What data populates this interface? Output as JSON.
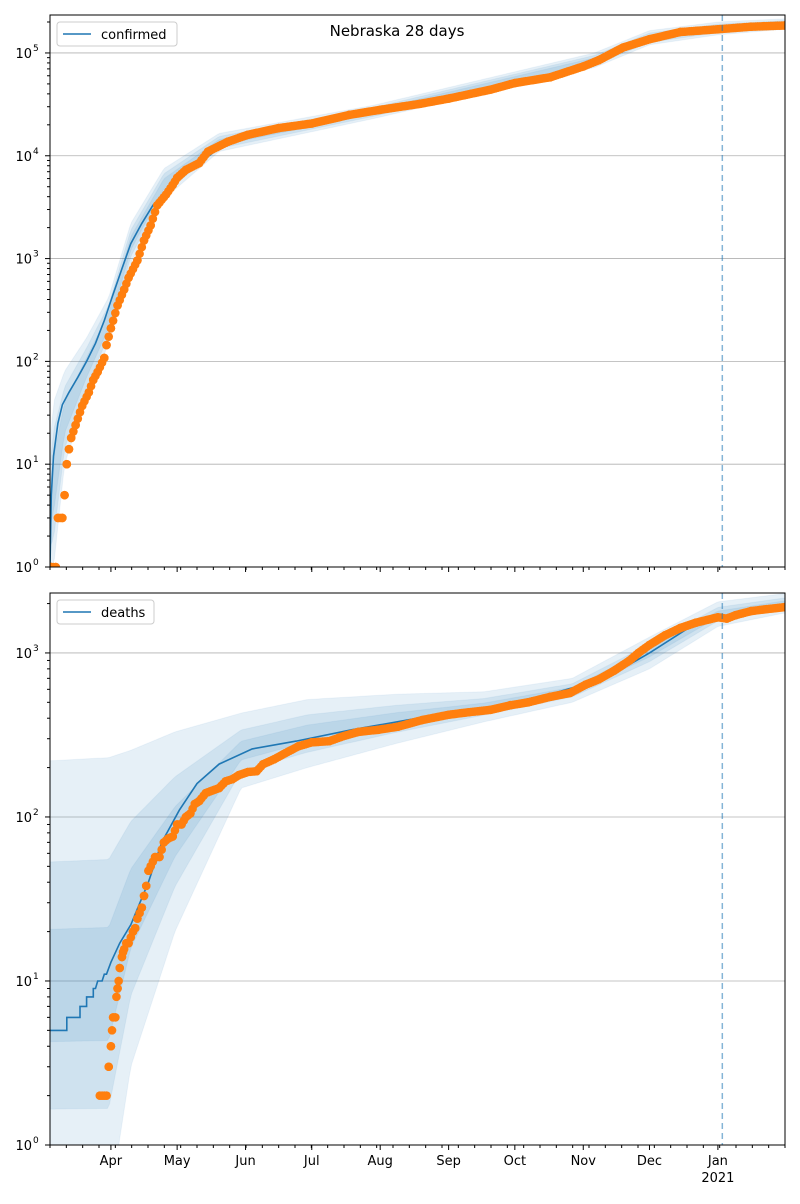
{
  "chart_data": [
    {
      "type": "line",
      "title": "Nebraska 28 days",
      "scale": "log",
      "ylim": [
        1,
        234000
      ],
      "xlim_days_since_2020_03_01": [
        3.4,
        336.4
      ],
      "yticks": [
        {
          "exp": "0",
          "value": 1
        },
        {
          "exp": "1",
          "value": 10
        },
        {
          "exp": "2",
          "value": 100
        },
        {
          "exp": "3",
          "value": 1000
        },
        {
          "exp": "4",
          "value": 10000
        },
        {
          "exp": "5",
          "value": 100000
        }
      ],
      "legend": {
        "label": "confirmed",
        "placement": "top-left"
      },
      "grid": "horizontal",
      "vline_day": 308,
      "model": [
        [
          3.4,
          1
        ],
        [
          4,
          5
        ],
        [
          5,
          12
        ],
        [
          7,
          25
        ],
        [
          9,
          38
        ],
        [
          12,
          50
        ],
        [
          16,
          70
        ],
        [
          20,
          100
        ],
        [
          24,
          150
        ],
        [
          28,
          250
        ],
        [
          32,
          450
        ],
        [
          36,
          800
        ],
        [
          40,
          1400
        ],
        [
          45,
          2200
        ],
        [
          50,
          3300
        ],
        [
          56,
          4600
        ],
        [
          61,
          6100
        ],
        [
          71,
          8500
        ],
        [
          84,
          13700
        ],
        [
          107,
          18600
        ],
        [
          139,
          25000
        ],
        [
          171,
          32000
        ],
        [
          203,
          44000
        ],
        [
          230,
          58000
        ],
        [
          252,
          85000
        ],
        [
          263,
          110000
        ],
        [
          275,
          135000
        ],
        [
          306,
          170000
        ],
        [
          336,
          185000
        ]
      ],
      "observed": [
        [
          4,
          1
        ],
        [
          6,
          1
        ],
        [
          7,
          3
        ],
        [
          9,
          3
        ],
        [
          10,
          5
        ],
        [
          11,
          10
        ],
        [
          12,
          14
        ],
        [
          13,
          18
        ],
        [
          15,
          24
        ],
        [
          18,
          37
        ],
        [
          21,
          50
        ],
        [
          23,
          66
        ],
        [
          25,
          79
        ],
        [
          28,
          108
        ],
        [
          29,
          144
        ],
        [
          31,
          210
        ],
        [
          34,
          350
        ],
        [
          37,
          500
        ],
        [
          39,
          650
        ],
        [
          43,
          960
        ],
        [
          46,
          1500
        ],
        [
          49,
          2100
        ],
        [
          52,
          3300
        ],
        [
          56,
          4200
        ],
        [
          59,
          5200
        ],
        [
          61,
          6100
        ],
        [
          65,
          7300
        ],
        [
          71,
          8500
        ],
        [
          75,
          11000
        ],
        [
          84,
          13700
        ],
        [
          93,
          16000
        ],
        [
          107,
          18600
        ],
        [
          122,
          20600
        ],
        [
          139,
          25000
        ],
        [
          153,
          28000
        ],
        [
          171,
          32000
        ],
        [
          184,
          36000
        ],
        [
          203,
          44000
        ],
        [
          214,
          51000
        ],
        [
          230,
          58000
        ],
        [
          245,
          74000
        ],
        [
          252,
          85000
        ],
        [
          263,
          113000
        ],
        [
          275,
          136000
        ],
        [
          289,
          160000
        ],
        [
          306,
          170000
        ],
        [
          321,
          180000
        ],
        [
          336,
          185000
        ]
      ],
      "band_outer": [
        [
          3.4,
          1,
          15
        ],
        [
          5,
          1,
          40
        ],
        [
          10,
          10,
          80
        ],
        [
          20,
          45,
          170
        ],
        [
          30,
          150,
          420
        ],
        [
          40,
          900,
          2200
        ],
        [
          55,
          3800,
          7500
        ],
        [
          80,
          11000,
          16500
        ],
        [
          150,
          23000,
          31000
        ],
        [
          250,
          72000,
          100000
        ],
        [
          275,
          120000,
          165000
        ],
        [
          306,
          150000,
          200000
        ],
        [
          336,
          170000,
          215000
        ]
      ],
      "band_levels": [
        1,
        0.66,
        0.33
      ]
    },
    {
      "type": "line",
      "title": "",
      "scale": "log",
      "ylim": [
        1,
        2320
      ],
      "xlim_days_since_2020_03_01": [
        3.4,
        336.4
      ],
      "yticks": [
        {
          "exp": "0",
          "value": 1
        },
        {
          "exp": "1",
          "value": 10
        },
        {
          "exp": "2",
          "value": 100
        },
        {
          "exp": "3",
          "value": 1000
        }
      ],
      "legend": {
        "label": "deaths",
        "placement": "top-left"
      },
      "grid": "horizontal",
      "vline_day": 308,
      "xticks": [
        {
          "label": "Apr",
          "day": 31
        },
        {
          "label": "May",
          "day": 61
        },
        {
          "label": "Jun",
          "day": 92
        },
        {
          "label": "Jul",
          "day": 122
        },
        {
          "label": "Aug",
          "day": 153
        },
        {
          "label": "Sep",
          "day": 184
        },
        {
          "label": "Oct",
          "day": 214
        },
        {
          "label": "Nov",
          "day": 245
        },
        {
          "label": "Dec",
          "day": 275
        },
        {
          "label": "Jan",
          "day": 306,
          "sub": "2021"
        }
      ],
      "model_step": true,
      "model": [
        [
          3.4,
          5
        ],
        [
          11,
          5
        ],
        [
          11,
          6
        ],
        [
          17,
          6
        ],
        [
          17,
          7
        ],
        [
          20,
          7
        ],
        [
          20,
          8
        ],
        [
          23,
          8
        ],
        [
          23,
          9
        ],
        [
          24,
          9
        ],
        [
          25,
          10
        ],
        [
          27,
          10
        ],
        [
          28,
          11
        ],
        [
          29,
          11
        ],
        [
          31,
          13
        ],
        [
          35,
          17
        ],
        [
          40,
          22
        ],
        [
          48,
          40
        ],
        [
          54,
          70
        ],
        [
          62,
          110
        ],
        [
          70,
          160
        ],
        [
          80,
          210
        ],
        [
          95,
          260
        ],
        [
          115,
          290
        ],
        [
          140,
          340
        ],
        [
          170,
          400
        ],
        [
          200,
          460
        ],
        [
          230,
          560
        ],
        [
          255,
          700
        ],
        [
          275,
          1000
        ],
        [
          292,
          1400
        ],
        [
          306,
          1650
        ],
        [
          320,
          1800
        ],
        [
          336,
          1950
        ]
      ],
      "observed": [
        [
          26,
          2
        ],
        [
          27,
          2
        ],
        [
          28,
          2
        ],
        [
          29,
          2
        ],
        [
          30,
          3
        ],
        [
          31,
          4
        ],
        [
          31.5,
          5
        ],
        [
          32,
          6
        ],
        [
          33,
          6
        ],
        [
          33.5,
          8
        ],
        [
          34,
          9
        ],
        [
          34.5,
          10
        ],
        [
          35,
          12
        ],
        [
          36,
          14
        ],
        [
          36.5,
          15
        ],
        [
          38,
          17
        ],
        [
          39,
          17
        ],
        [
          41,
          20
        ],
        [
          42,
          21
        ],
        [
          43,
          24
        ],
        [
          45,
          28
        ],
        [
          46,
          33
        ],
        [
          47,
          38
        ],
        [
          48,
          47
        ],
        [
          49,
          50
        ],
        [
          51,
          57
        ],
        [
          53,
          57
        ],
        [
          55,
          70
        ],
        [
          57,
          74
        ],
        [
          59,
          76
        ],
        [
          61,
          90
        ],
        [
          63,
          90
        ],
        [
          65,
          100
        ],
        [
          67,
          105
        ],
        [
          69,
          120
        ],
        [
          71,
          125
        ],
        [
          74,
          140
        ],
        [
          77,
          145
        ],
        [
          80,
          150
        ],
        [
          83,
          165
        ],
        [
          86,
          170
        ],
        [
          89,
          180
        ],
        [
          93,
          188
        ],
        [
          97,
          190
        ],
        [
          100,
          210
        ],
        [
          105,
          225
        ],
        [
          110,
          245
        ],
        [
          116,
          270
        ],
        [
          122,
          285
        ],
        [
          130,
          290
        ],
        [
          136,
          310
        ],
        [
          143,
          330
        ],
        [
          152,
          340
        ],
        [
          161,
          355
        ],
        [
          172,
          390
        ],
        [
          184,
          420
        ],
        [
          193,
          435
        ],
        [
          203,
          450
        ],
        [
          212,
          480
        ],
        [
          220,
          500
        ],
        [
          230,
          540
        ],
        [
          239,
          570
        ],
        [
          246,
          640
        ],
        [
          252,
          690
        ],
        [
          259,
          780
        ],
        [
          266,
          900
        ],
        [
          270,
          1000
        ],
        [
          275,
          1120
        ],
        [
          282,
          1280
        ],
        [
          289,
          1420
        ],
        [
          296,
          1530
        ],
        [
          306,
          1650
        ],
        [
          310,
          1620
        ],
        [
          314,
          1700
        ],
        [
          321,
          1800
        ],
        [
          328,
          1850
        ],
        [
          336,
          1900
        ]
      ],
      "band_outer": [
        [
          3.4,
          0.4,
          220
        ],
        [
          30,
          0.4,
          230
        ],
        [
          40,
          3,
          255
        ],
        [
          60,
          20,
          330
        ],
        [
          90,
          150,
          430
        ],
        [
          120,
          200,
          520
        ],
        [
          160,
          280,
          560
        ],
        [
          200,
          380,
          580
        ],
        [
          240,
          500,
          700
        ],
        [
          275,
          800,
          1250
        ],
        [
          306,
          1450,
          2050
        ],
        [
          336,
          1750,
          2300
        ]
      ],
      "band_levels": [
        1,
        0.55,
        0.25
      ]
    }
  ]
}
